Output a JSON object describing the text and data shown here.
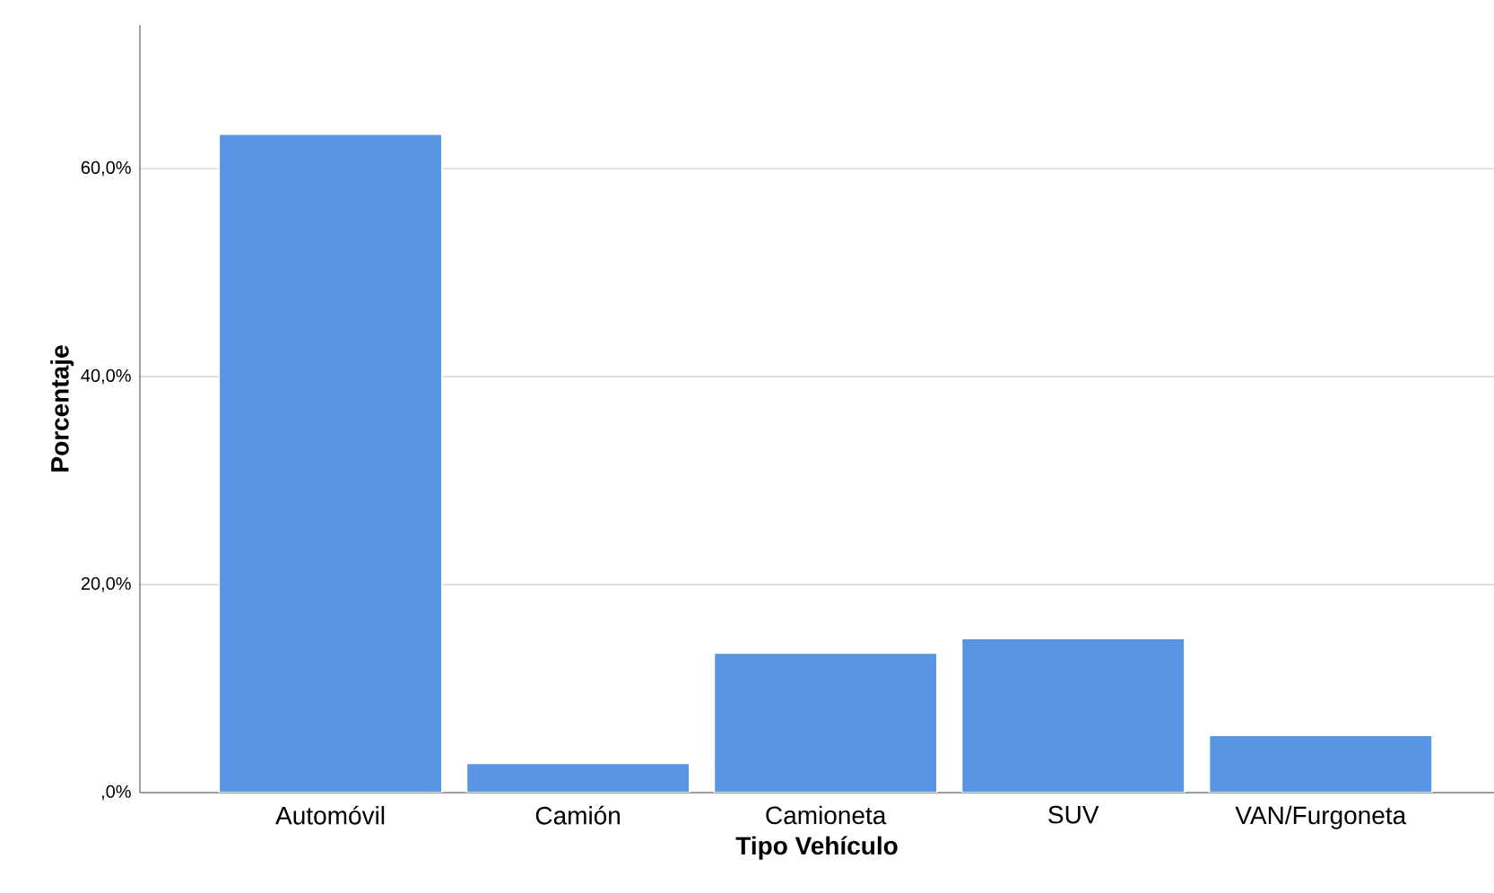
{
  "chart_data": {
    "type": "bar",
    "xlabel": "Tipo Vehículo",
    "ylabel": "Porcentaje",
    "categories": [
      "Automóvil",
      "Camión",
      "Camioneta",
      "SUV",
      "VAN/Furgoneta"
    ],
    "values": [
      63.3,
      2.8,
      13.4,
      14.8,
      5.5
    ],
    "color": "#5896e4",
    "ylim": [
      0,
      73.8
    ],
    "yticks": [
      {
        "value": 0,
        "label": ",0%"
      },
      {
        "value": 20,
        "label": "20,0%"
      },
      {
        "value": 40,
        "label": "40,0%"
      },
      {
        "value": 60,
        "label": "60,0%"
      }
    ],
    "grid": "y"
  }
}
